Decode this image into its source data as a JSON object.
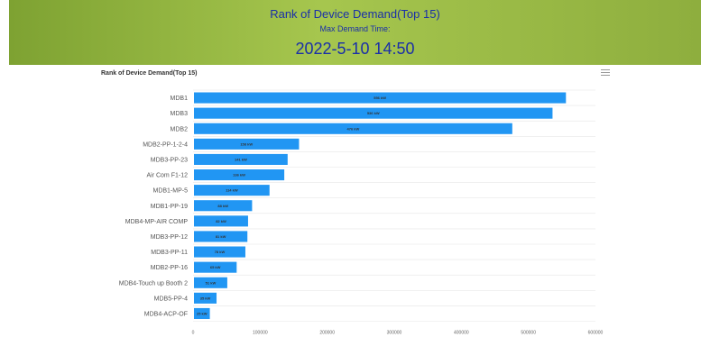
{
  "header": {
    "title": "Rank of Device Demand(Top 15)",
    "subtitle": "Max Demand Time:",
    "time": "2022-5-10 14:50"
  },
  "chart_data": {
    "type": "bar",
    "orientation": "horizontal",
    "title": "Rank of Device Demand(Top 15)",
    "categories": [
      "MDB1",
      "MDB3",
      "MDB2",
      "MDB2-PP-1-2-4",
      "MDB3-PP-23",
      "Air Com F1-12",
      "MDB1-MP-5",
      "MDB1-PP-19",
      "MDB4-MP-AIR COMP",
      "MDB3-PP-12",
      "MDB3-PP-11",
      "MDB2-PP-16",
      "MDB4-Touch up Booth 2",
      "MDB5-PP-4",
      "MDB4-ACP-OF"
    ],
    "values": [
      556,
      536,
      476,
      158,
      141,
      136,
      114,
      88,
      82,
      81,
      78,
      65,
      51,
      35,
      25
    ],
    "unit": "kW",
    "data_labels": [
      "556 kW",
      "536 kW",
      "476 kW",
      "158 kW",
      "141 kW",
      "136 kW",
      "114 kW",
      "88 kW",
      "82 kW",
      "81 kW",
      "78 kW",
      "65 kW",
      "51 kW",
      "35 kW",
      "25 kW"
    ],
    "xlim": [
      0,
      600000
    ],
    "xticks": [
      0,
      100000,
      200000,
      300000,
      400000,
      500000,
      600000
    ],
    "xtick_labels": [
      "0",
      "100000",
      "200000",
      "300000",
      "400000",
      "500000",
      "600000"
    ],
    "grid": true,
    "bar_color": "#2196f3"
  }
}
